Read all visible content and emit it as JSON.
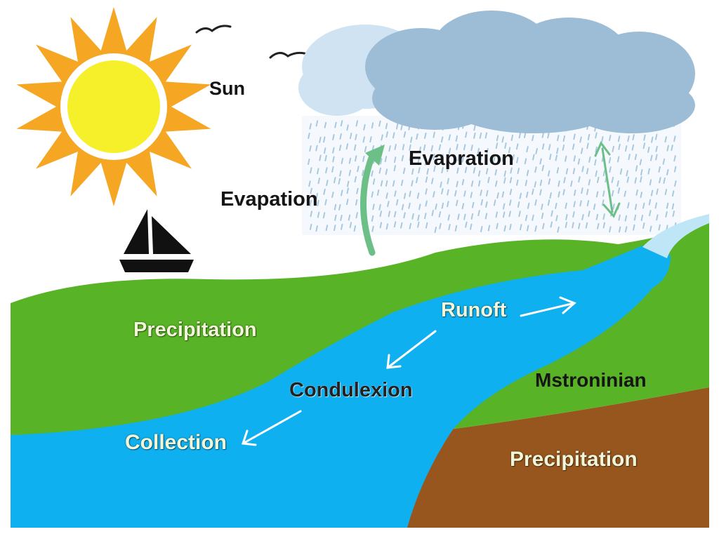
{
  "labels": {
    "sun": "Sun",
    "evaporation_left": "Evapation",
    "evaporation_top": "Evapration",
    "precipitation_left": "Precipitation",
    "runoff": "Runoft",
    "condensation": "Condulexion",
    "collection": "Collection",
    "mislabel_right": "Mstroninian",
    "precipitation_right": "Precipitation"
  },
  "colors": {
    "sun_core": "#f6f02a",
    "sun_rays": "#f5a623",
    "cloud": "#9dbcd6",
    "rain": "#a9c8de",
    "land": "#58b326",
    "river": "#0fb0ef",
    "soil": "#98561f",
    "arrow_green": "#6dbf88",
    "arrow_white": "#ffffff"
  }
}
